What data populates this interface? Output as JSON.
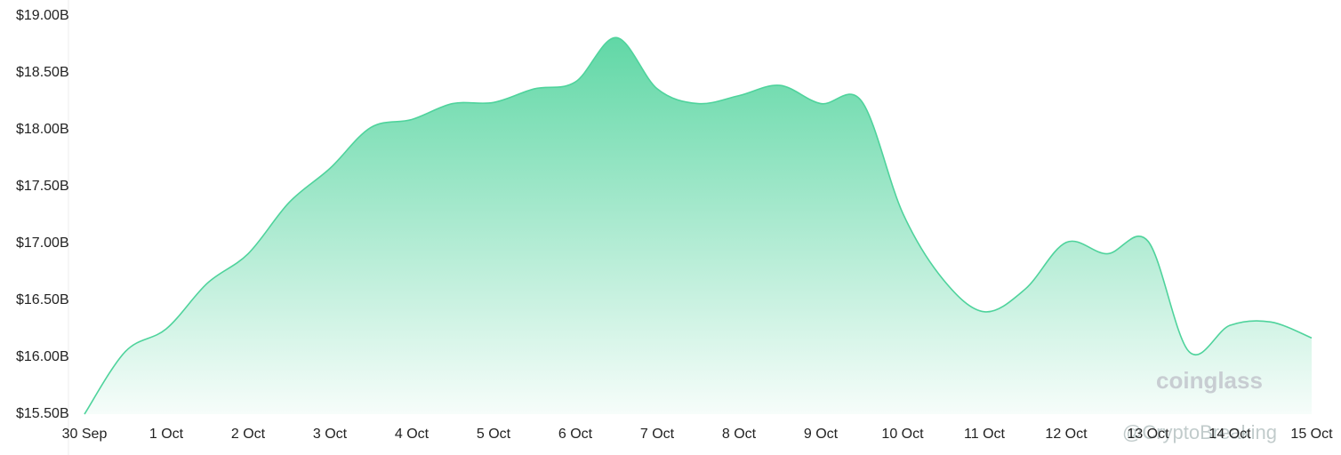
{
  "chart_data": {
    "type": "area",
    "categories": [
      "30 Sep",
      null,
      "1 Oct",
      null,
      "2 Oct",
      null,
      "3 Oct",
      null,
      "4 Oct",
      null,
      "5 Oct",
      null,
      "6 Oct",
      null,
      "7 Oct",
      null,
      "8 Oct",
      null,
      "9 Oct",
      null,
      "10 Oct",
      null,
      "11 Oct",
      null,
      "12 Oct",
      null,
      "13 Oct",
      null,
      "14 Oct",
      null,
      "15 Oct"
    ],
    "values": [
      15.5,
      16.05,
      16.25,
      16.65,
      16.91,
      17.36,
      17.66,
      18.02,
      18.09,
      18.23,
      18.24,
      18.36,
      18.42,
      18.81,
      18.36,
      18.23,
      18.3,
      18.39,
      18.23,
      18.25,
      17.27,
      16.68,
      16.4,
      16.6,
      17.01,
      16.91,
      17.02,
      16.05,
      16.28,
      16.31,
      16.17
    ],
    "color": "#4fd39c",
    "ylim": [
      15.5,
      19
    ],
    "yticks": [
      {
        "value": 15.5,
        "label": "$15.50B"
      },
      {
        "value": 16,
        "label": "$16.00B"
      },
      {
        "value": 16.5,
        "label": "$16.50B"
      },
      {
        "value": 17,
        "label": "$17.00B"
      },
      {
        "value": 17.5,
        "label": "$17.50B"
      },
      {
        "value": 18,
        "label": "$18.00B"
      },
      {
        "value": 18.5,
        "label": "$18.50B"
      },
      {
        "value": 19,
        "label": "$19.00B"
      }
    ],
    "watermark": "coinglass",
    "credit": "@CryptoBreaking"
  }
}
